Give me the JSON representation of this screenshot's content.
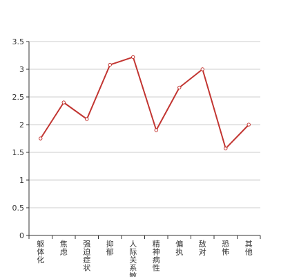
{
  "chart_data": {
    "type": "line",
    "categories": [
      "躯体化",
      "焦虑",
      "强迫症状",
      "抑郁",
      "人际关系敏感",
      "精神病性",
      "偏执",
      "敌对",
      "恐怖",
      "其他"
    ],
    "series": [
      {
        "values": [
          1.75,
          2.4,
          2.1,
          3.08,
          3.22,
          1.9,
          2.67,
          3.0,
          1.57,
          2.0
        ]
      }
    ],
    "y_ticks": [
      "0",
      "0.5",
      "1",
      "1.5",
      "2",
      "2.5",
      "3",
      "3.5"
    ],
    "ylim": [
      0,
      3.5
    ],
    "grid": true,
    "legend": "none",
    "colors": {
      "line": "#c23531",
      "marker_fill": "#ffffff",
      "grid": "#cccccc",
      "axis": "#333333"
    }
  }
}
